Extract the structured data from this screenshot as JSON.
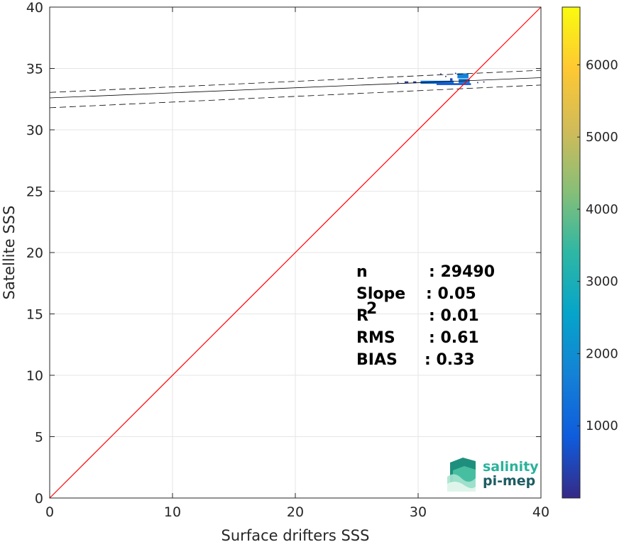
{
  "chart_data": {
    "type": "scatter",
    "xlabel": "Surface drifters SSS",
    "ylabel": "Satellite SSS",
    "xlim": [
      0,
      40
    ],
    "ylim": [
      0,
      40
    ],
    "xticks": [
      "0",
      "10",
      "20",
      "30",
      "40"
    ],
    "yticks": [
      "0",
      "5",
      "10",
      "15",
      "20",
      "25",
      "30",
      "35",
      "40"
    ],
    "grid": true,
    "identity_line": {
      "from": [
        0,
        0
      ],
      "to": [
        40,
        40
      ],
      "color": "#ff0000"
    },
    "regression": {
      "fit": {
        "x": [
          0,
          40
        ],
        "y": [
          32.6,
          34.25
        ]
      },
      "upper": {
        "x": [
          0,
          40
        ],
        "y": [
          33.05,
          34.85
        ]
      },
      "lower": {
        "x": [
          0,
          40
        ],
        "y": [
          31.8,
          33.65
        ]
      }
    },
    "density_cells": [
      {
        "x": 28.9,
        "y": 33.8,
        "w": 0.3,
        "h": 0.15,
        "count": 300
      },
      {
        "x": 29.6,
        "y": 33.8,
        "w": 0.25,
        "h": 0.15,
        "count": 300
      },
      {
        "x": 30.2,
        "y": 33.75,
        "w": 2.7,
        "h": 0.25,
        "count": 1400
      },
      {
        "x": 31.5,
        "y": 33.65,
        "w": 2.8,
        "h": 0.15,
        "count": 700
      },
      {
        "x": 33.3,
        "y": 33.8,
        "w": 0.9,
        "h": 0.35,
        "count": 1500
      },
      {
        "x": 33.2,
        "y": 34.2,
        "w": 0.9,
        "h": 0.4,
        "count": 1700
      },
      {
        "x": 32.6,
        "y": 34.0,
        "w": 0.2,
        "h": 0.2,
        "count": 500
      },
      {
        "x": 31.8,
        "y": 34.5,
        "w": 0.1,
        "h": 0.1,
        "count": 200
      },
      {
        "x": 32.2,
        "y": 34.3,
        "w": 0.1,
        "h": 0.1,
        "count": 200
      },
      {
        "x": 33.0,
        "y": 34.55,
        "w": 0.1,
        "h": 0.1,
        "count": 200
      },
      {
        "x": 34.8,
        "y": 33.8,
        "w": 0.1,
        "h": 0.1,
        "count": 200
      },
      {
        "x": 28.3,
        "y": 33.8,
        "w": 0.1,
        "h": 0.1,
        "count": 200
      },
      {
        "x": 35.3,
        "y": 33.85,
        "w": 0.1,
        "h": 0.1,
        "count": 150
      }
    ],
    "colorbar": {
      "range": [
        0,
        6800
      ],
      "ticks": [
        1000,
        2000,
        3000,
        4000,
        5000,
        6000
      ],
      "colormap": "parula",
      "stops": [
        "#352a87",
        "#0f5cdd",
        "#1481d6",
        "#06a4ca",
        "#2eb7a4",
        "#87bf77",
        "#d1bb59",
        "#fec832",
        "#f9fb0e"
      ]
    },
    "stats": [
      {
        "label": "n",
        "value": ": 29490"
      },
      {
        "label": "Slope",
        "value": ": 0.05"
      },
      {
        "label": "R",
        "sup": "2",
        "value": ": 0.01"
      },
      {
        "label": "RMS",
        "value": ": 0.61"
      },
      {
        "label": "BIAS",
        "value": ": 0.33"
      }
    ]
  },
  "logo": {
    "line1": "salinity",
    "line2": "pi-mep",
    "colors": {
      "line1": "#2ab29a",
      "line2": "#1d5c63"
    }
  }
}
